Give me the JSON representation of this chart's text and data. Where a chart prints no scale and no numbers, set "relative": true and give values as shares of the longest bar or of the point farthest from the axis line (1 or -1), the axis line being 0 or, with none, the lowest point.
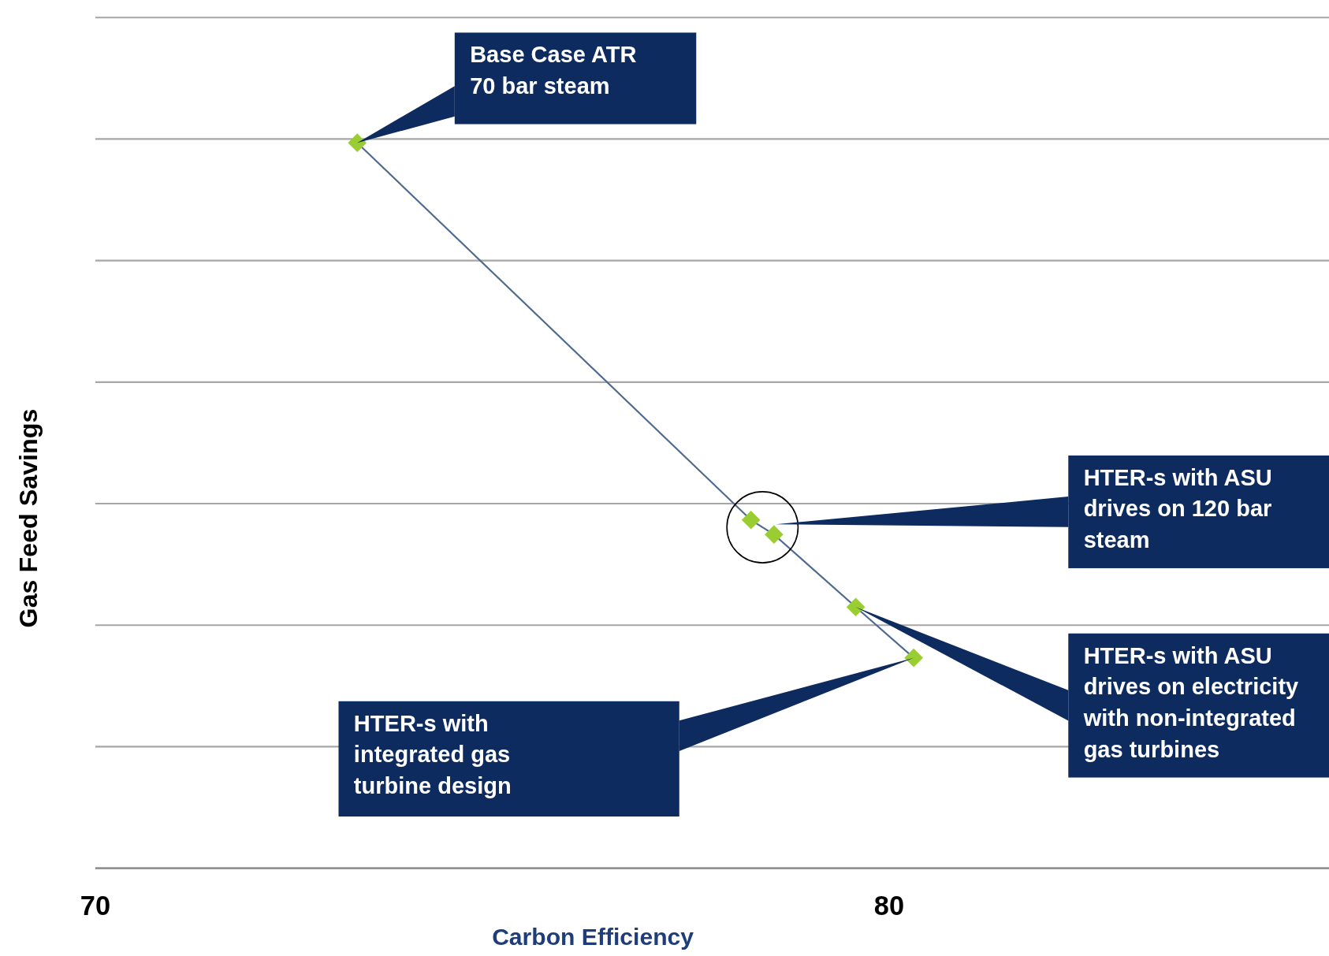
{
  "chart_data": {
    "type": "line",
    "relative": true,
    "xlabel": "Carbon Efficiency",
    "ylabel": "Gas Feed Savings",
    "x": [
      73.3,
      78.26,
      78.55,
      79.58,
      80.31
    ],
    "series": [
      {
        "color": "#9acd32",
        "values": [
          1.0,
          0.48,
          0.46,
          0.36,
          0.29
        ]
      }
    ],
    "xlim": [
      70,
      85.6
    ],
    "xticks": [
      70,
      80
    ],
    "grid": "y",
    "marker": "diamond",
    "line_style": "solid",
    "annotations": [
      "Base Case ATR 70 bar steam",
      "HTER-s with ASU drives on 120 bar steam",
      "HTER-s with ASU drives on electricity with non-integrated gas turbines",
      "HTER-s with integrated gas turbine design"
    ]
  }
}
